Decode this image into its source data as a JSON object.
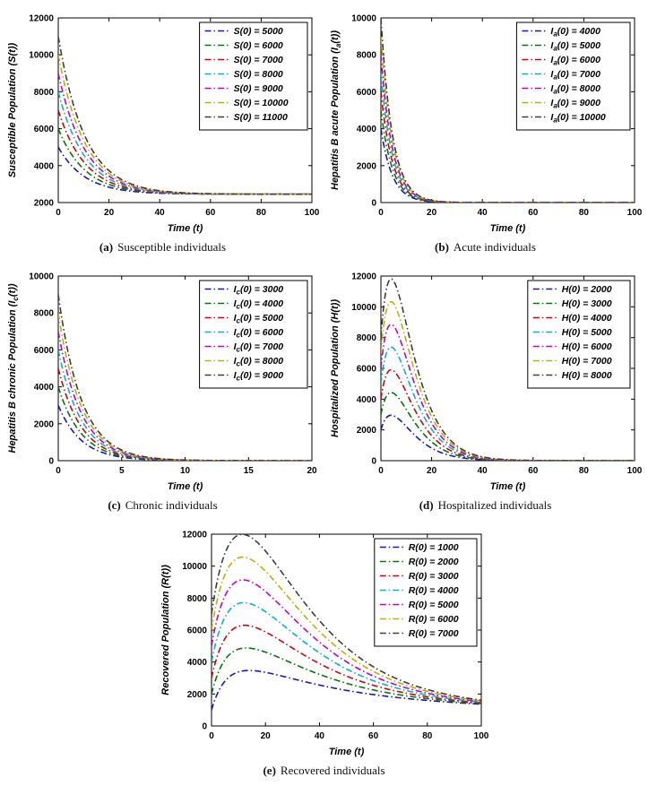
{
  "figure": {
    "background": "#ffffff"
  },
  "palette": [
    "#1515cf",
    "#007a00",
    "#d90000",
    "#00b5c9",
    "#c400c4",
    "#b5b500",
    "#3d3d3d"
  ],
  "line_style": "dash-dot",
  "line_dash": "7 3 1.5 3",
  "chart_data": [
    {
      "id": "a",
      "type": "line",
      "title": "",
      "xlabel": "Time (t)",
      "ylabel": "Susceptible Population (S(t))",
      "ylabel_segments": [
        {
          "text": "Susceptible Population (S(t))",
          "sub": false
        }
      ],
      "xlim": [
        0,
        100
      ],
      "ylim": [
        2000,
        12000
      ],
      "xticks": [
        0,
        20,
        40,
        60,
        80,
        100
      ],
      "yticks": [
        2000,
        4000,
        6000,
        8000,
        10000,
        12000
      ],
      "grid": false,
      "legend_position": "top-right",
      "model": {
        "kind": "baseline_decay",
        "baseline": 2450,
        "rate": 0.095
      },
      "series": [
        {
          "label": "S(0) = 5000",
          "var": "S",
          "sub": "",
          "y0": 5000
        },
        {
          "label": "S(0) = 6000",
          "var": "S",
          "sub": "",
          "y0": 6000
        },
        {
          "label": "S(0) = 7000",
          "var": "S",
          "sub": "",
          "y0": 7000
        },
        {
          "label": "S(0) = 8000",
          "var": "S",
          "sub": "",
          "y0": 8000
        },
        {
          "label": "S(0) = 9000",
          "var": "S",
          "sub": "",
          "y0": 9000
        },
        {
          "label": "S(0) = 10000",
          "var": "S",
          "sub": "",
          "y0": 10000
        },
        {
          "label": "S(0) = 11000",
          "var": "S",
          "sub": "",
          "y0": 11000
        }
      ],
      "caption_label": "(a)",
      "caption_text": "Susceptible individuals"
    },
    {
      "id": "b",
      "type": "line",
      "title": "",
      "xlabel": "Time (t)",
      "ylabel": "Hepatitis B acute Population (I_a(t))",
      "ylabel_segments": [
        {
          "text": "Hepatitis B acute Population (I",
          "sub": false
        },
        {
          "text": "a",
          "sub": true
        },
        {
          "text": "(t))",
          "sub": false
        }
      ],
      "xlim": [
        0,
        100
      ],
      "ylim": [
        0,
        10000
      ],
      "xticks": [
        0,
        20,
        40,
        60,
        80,
        100
      ],
      "yticks": [
        0,
        2000,
        4000,
        6000,
        8000,
        10000
      ],
      "grid": false,
      "legend_position": "top-right",
      "model": {
        "kind": "exp_decay",
        "rate": 0.22
      },
      "series": [
        {
          "label": "I_a(0) = 4000",
          "var": "I",
          "sub": "a",
          "y0": 4000
        },
        {
          "label": "I_a(0) = 5000",
          "var": "I",
          "sub": "a",
          "y0": 5000
        },
        {
          "label": "I_a(0) = 6000",
          "var": "I",
          "sub": "a",
          "y0": 6000
        },
        {
          "label": "I_a(0) = 7000",
          "var": "I",
          "sub": "a",
          "y0": 7000
        },
        {
          "label": "I_a(0) = 8000",
          "var": "I",
          "sub": "a",
          "y0": 8000
        },
        {
          "label": "I_a(0) = 9000",
          "var": "I",
          "sub": "a",
          "y0": 9000
        },
        {
          "label": "I_a(0) = 10000",
          "var": "I",
          "sub": "a",
          "y0": 10000
        }
      ],
      "caption_label": "(b)",
      "caption_text": "Acute individuals"
    },
    {
      "id": "c",
      "type": "line",
      "title": "",
      "xlabel": "Time (t)",
      "ylabel": "Hepatitis B chronic Population (I_c(t))",
      "ylabel_segments": [
        {
          "text": "Hepatitis B chronic Population (I",
          "sub": false
        },
        {
          "text": "c",
          "sub": true
        },
        {
          "text": "(t))",
          "sub": false
        }
      ],
      "xlim": [
        0,
        20
      ],
      "ylim": [
        0,
        10000
      ],
      "xticks": [
        0,
        5,
        10,
        15,
        20
      ],
      "yticks": [
        0,
        2000,
        4000,
        6000,
        8000,
        10000
      ],
      "grid": false,
      "legend_position": "top-right",
      "model": {
        "kind": "exp_decay",
        "rate": 0.55
      },
      "series": [
        {
          "label": "I_c(0) = 3000",
          "var": "I",
          "sub": "c",
          "y0": 3000
        },
        {
          "label": "I_c(0) = 4000",
          "var": "I",
          "sub": "c",
          "y0": 4000
        },
        {
          "label": "I_c(0) = 5000",
          "var": "I",
          "sub": "c",
          "y0": 5000
        },
        {
          "label": "I_c(0) = 6000",
          "var": "I",
          "sub": "c",
          "y0": 6000
        },
        {
          "label": "I_c(0) = 7000",
          "var": "I",
          "sub": "c",
          "y0": 7000
        },
        {
          "label": "I_c(0) = 8000",
          "var": "I",
          "sub": "c",
          "y0": 8000
        },
        {
          "label": "I_c(0) = 9000",
          "var": "I",
          "sub": "c",
          "y0": 9000
        }
      ],
      "caption_label": "(c)",
      "caption_text": "Chronic individuals"
    },
    {
      "id": "d",
      "type": "line",
      "title": "",
      "xlabel": "Time (t)",
      "ylabel": "Hospitalized Population (H(t))",
      "ylabel_segments": [
        {
          "text": "Hospitalized Population (H(t))",
          "sub": false
        }
      ],
      "xlim": [
        0,
        100
      ],
      "ylim": [
        0,
        12000
      ],
      "xticks": [
        0,
        20,
        40,
        60,
        80,
        100
      ],
      "yticks": [
        0,
        2000,
        4000,
        6000,
        8000,
        10000,
        12000
      ],
      "grid": false,
      "legend_position": "top-right",
      "model": {
        "kind": "rise_decay",
        "a": 0.45,
        "rate": 0.16
      },
      "series": [
        {
          "label": "H(0) = 2000",
          "var": "H",
          "sub": "",
          "y0": 2000
        },
        {
          "label": "H(0) = 3000",
          "var": "H",
          "sub": "",
          "y0": 3000
        },
        {
          "label": "H(0) = 4000",
          "var": "H",
          "sub": "",
          "y0": 4000
        },
        {
          "label": "H(0) = 5000",
          "var": "H",
          "sub": "",
          "y0": 5000
        },
        {
          "label": "H(0) = 6000",
          "var": "H",
          "sub": "",
          "y0": 6000
        },
        {
          "label": "H(0) = 7000",
          "var": "H",
          "sub": "",
          "y0": 7000
        },
        {
          "label": "H(0) = 8000",
          "var": "H",
          "sub": "",
          "y0": 8000
        }
      ],
      "caption_label": "(d)",
      "caption_text": "Hospitalized individuals"
    },
    {
      "id": "e",
      "type": "line",
      "title": "",
      "xlabel": "Time (t)",
      "ylabel": "Recovered Population (R(t))",
      "ylabel_segments": [
        {
          "text": "Recovered Population (R(t))",
          "sub": false
        }
      ],
      "xlim": [
        0,
        100
      ],
      "ylim": [
        0,
        12000
      ],
      "xticks": [
        0,
        20,
        40,
        60,
        80,
        100
      ],
      "yticks": [
        0,
        2000,
        4000,
        6000,
        8000,
        10000,
        12000
      ],
      "grid": false,
      "legend_position": "top-right",
      "model": {
        "kind": "peak_converge",
        "c": 0.16,
        "r": 0.06,
        "K": 2400,
        "p": 0.2,
        "q": 0.006
      },
      "series": [
        {
          "label": "R(0) = 1000",
          "var": "R",
          "sub": "",
          "y0": 1000
        },
        {
          "label": "R(0) = 2000",
          "var": "R",
          "sub": "",
          "y0": 2000
        },
        {
          "label": "R(0) = 3000",
          "var": "R",
          "sub": "",
          "y0": 3000
        },
        {
          "label": "R(0) = 4000",
          "var": "R",
          "sub": "",
          "y0": 4000
        },
        {
          "label": "R(0) = 5000",
          "var": "R",
          "sub": "",
          "y0": 5000
        },
        {
          "label": "R(0) = 6000",
          "var": "R",
          "sub": "",
          "y0": 6000
        },
        {
          "label": "R(0) = 7000",
          "var": "R",
          "sub": "",
          "y0": 7000
        }
      ],
      "caption_label": "(e)",
      "caption_text": "Recovered individuals"
    }
  ]
}
